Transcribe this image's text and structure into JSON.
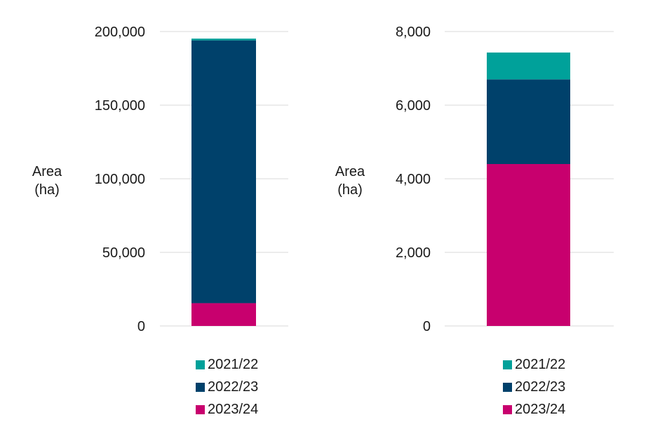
{
  "charts": [
    {
      "ylabel_line1": "Area",
      "ylabel_line2": "(ha)",
      "legend": [
        "2021/22",
        "2022/23",
        "2023/24"
      ]
    },
    {
      "ylabel_line1": "Area",
      "ylabel_line2": "(ha)",
      "legend": [
        "2021/22",
        "2022/23",
        "2023/24"
      ]
    }
  ],
  "colors": {
    "2021/22": "#00A19A",
    "2022/23": "#00416B",
    "2023/24": "#C8006E",
    "grid": "#d9d9d9"
  },
  "chart_data": [
    {
      "type": "bar",
      "stacked": true,
      "categories": [
        ""
      ],
      "ylabel": "Area (ha)",
      "ylim": [
        0,
        200000
      ],
      "yticks": [
        0,
        50000,
        100000,
        150000,
        200000
      ],
      "grid": true,
      "legend_position": "bottom",
      "series": [
        {
          "name": "2023/24",
          "values": [
            15500
          ]
        },
        {
          "name": "2022/23",
          "values": [
            178500
          ]
        },
        {
          "name": "2021/22",
          "values": [
            1200
          ]
        }
      ]
    },
    {
      "type": "bar",
      "stacked": true,
      "categories": [
        ""
      ],
      "ylabel": "Area (ha)",
      "ylim": [
        0,
        8000
      ],
      "yticks": [
        0,
        2000,
        4000,
        6000,
        8000
      ],
      "grid": true,
      "legend_position": "bottom",
      "series": [
        {
          "name": "2023/24",
          "values": [
            4400
          ]
        },
        {
          "name": "2022/23",
          "values": [
            2300
          ]
        },
        {
          "name": "2021/22",
          "values": [
            730
          ]
        }
      ]
    }
  ]
}
